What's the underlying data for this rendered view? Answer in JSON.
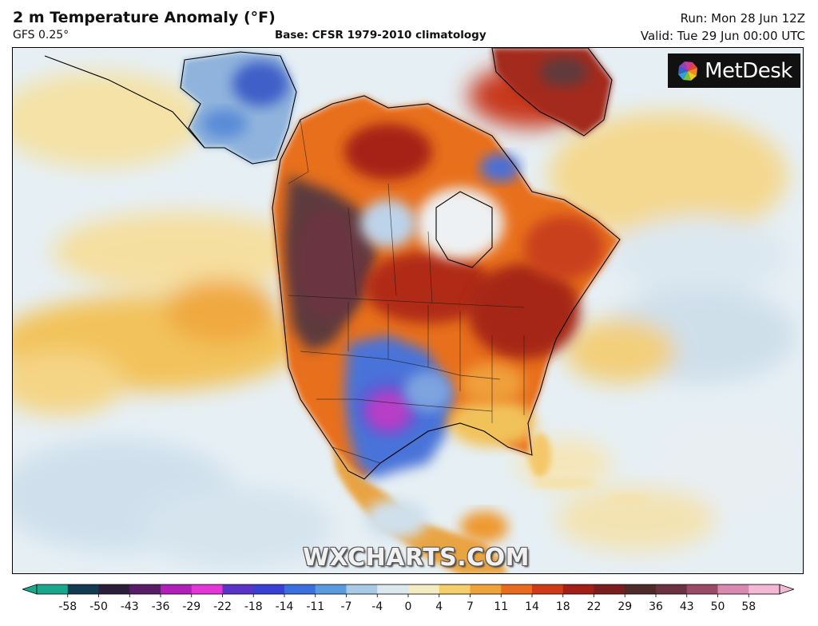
{
  "header": {
    "title": "2 m Temperature Anomaly (°F)",
    "model": "GFS 0.25°",
    "base": "Base: CFSR 1979-2010 climatology",
    "run": "Run: Mon 28 Jun 12Z",
    "valid": "Valid: Tue 29 Jun 00:00 UTC"
  },
  "logo": {
    "text": "MetDesk",
    "icon": "metdesk-pinwheel-icon"
  },
  "watermark": "WXCHARTS.COM",
  "legend": {
    "ticks": [
      "-58",
      "-50",
      "-43",
      "-36",
      "-29",
      "-22",
      "-18",
      "-14",
      "-11",
      "-7",
      "-4",
      "0",
      "4",
      "7",
      "11",
      "14",
      "18",
      "22",
      "29",
      "36",
      "43",
      "50",
      "58"
    ],
    "colors": [
      "#1aa88c",
      "#123b52",
      "#2a1e3a",
      "#581d66",
      "#b11fb8",
      "#e436d8",
      "#5a33c8",
      "#3a3fd6",
      "#3b6fe0",
      "#5a9be0",
      "#a8cae4",
      "#dde8ee",
      "#f3ecc2",
      "#f4cf6a",
      "#f0a23a",
      "#e96b1d",
      "#d03a17",
      "#a31e16",
      "#7a1d1e",
      "#4e2a2a",
      "#6a3240",
      "#9a4a66",
      "#d889b0",
      "#f2b8d4"
    ]
  },
  "map": {
    "region": "North America",
    "colors": {
      "ocean": "#e6eff4",
      "hot_extreme": "#5c3a3e",
      "hot_dark": "#8a1f1a",
      "hot": "#d24515",
      "warm": "#ef9a32",
      "mild": "#f6d889",
      "cold": "#3f6fd8",
      "cold_extreme": "#b72fc0"
    }
  }
}
